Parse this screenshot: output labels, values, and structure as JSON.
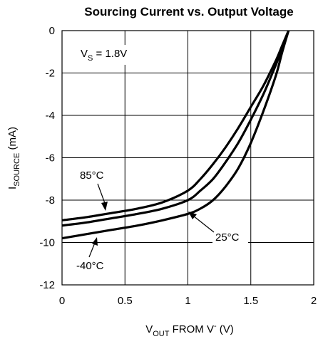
{
  "chart_data": {
    "type": "line",
    "title": "Sourcing Current vs. Output Voltage",
    "xlabel": {
      "main": "V",
      "sub": "OUT",
      "rest": " FROM V",
      "sup": "-",
      "tail": " (V)"
    },
    "ylabel": {
      "main": "I",
      "sub": "SOURCE",
      "rest": " (mA)"
    },
    "xlim": [
      0,
      2
    ],
    "ylim": [
      -12,
      0
    ],
    "xticks": [
      0,
      0.5,
      1,
      1.5,
      2
    ],
    "xtick_labels": [
      "0",
      "0.5",
      "1",
      "1.5",
      "2"
    ],
    "yticks": [
      0,
      -2,
      -4,
      -6,
      -8,
      -10,
      -12
    ],
    "ytick_labels": [
      "0",
      "-2",
      "-4",
      "-6",
      "-8",
      "-10",
      "-12"
    ],
    "grid": true,
    "annotation_vs": {
      "main": "V",
      "sub": "S",
      "rest": " = 1.8V"
    },
    "series": [
      {
        "name": "85°C",
        "x": [
          0,
          0.2,
          0.4,
          0.6,
          0.8,
          1.0,
          1.1,
          1.2,
          1.3,
          1.4,
          1.5,
          1.6,
          1.7,
          1.75,
          1.8
        ],
        "y": [
          -8.95,
          -8.8,
          -8.6,
          -8.4,
          -8.1,
          -7.55,
          -7.0,
          -6.3,
          -5.5,
          -4.6,
          -3.6,
          -2.6,
          -1.4,
          -0.7,
          0
        ]
      },
      {
        "name": "25°C",
        "x": [
          0,
          0.2,
          0.4,
          0.6,
          0.8,
          1.0,
          1.1,
          1.2,
          1.3,
          1.4,
          1.5,
          1.6,
          1.7,
          1.75,
          1.8
        ],
        "y": [
          -9.2,
          -9.05,
          -8.85,
          -8.65,
          -8.4,
          -8.0,
          -7.55,
          -7.0,
          -6.2,
          -5.3,
          -4.2,
          -3.0,
          -1.6,
          -0.8,
          0
        ]
      },
      {
        "name": "-40°C",
        "x": [
          0,
          0.2,
          0.4,
          0.6,
          0.8,
          1.0,
          1.1,
          1.2,
          1.3,
          1.4,
          1.5,
          1.6,
          1.7,
          1.75,
          1.8
        ],
        "y": [
          -9.8,
          -9.6,
          -9.4,
          -9.2,
          -8.95,
          -8.65,
          -8.4,
          -8.0,
          -7.35,
          -6.5,
          -5.3,
          -3.8,
          -2.1,
          -1.0,
          0
        ]
      }
    ],
    "labels": [
      "85°C",
      "25°C",
      "-40°C"
    ]
  }
}
